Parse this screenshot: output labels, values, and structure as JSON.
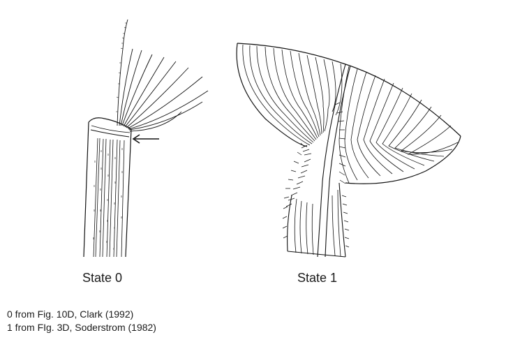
{
  "figure": {
    "state0_label": "State 0",
    "state1_label": "State 1"
  },
  "credits": {
    "line0": "0 from Fig. 10D, Clark (1992)",
    "line1": "1 from FIg. 3D, Soderstrom (1982)"
  },
  "colors": {
    "ink": "#111111",
    "background": "#ffffff"
  }
}
